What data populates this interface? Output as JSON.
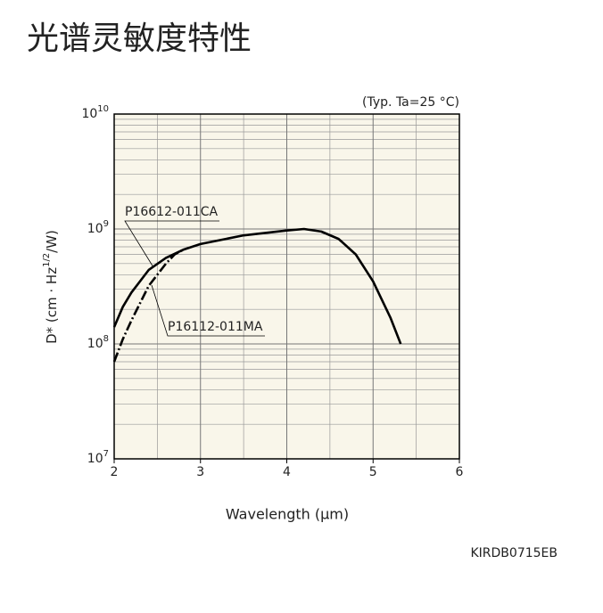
{
  "chart_data": {
    "type": "line",
    "title": "光谱灵敏度特性",
    "subtitle": "(Typ. Ta=25 °C)",
    "x_label": "Wavelength (μm)",
    "y_label": [
      "D* (cm · Hz",
      "1/2",
      "/W)"
    ],
    "footnote": "KIRDB0715EB",
    "log_y": true,
    "grid": true,
    "background": "#f9f6ea",
    "xlim": [
      2,
      6
    ],
    "xticks": [
      2,
      3,
      4,
      5,
      6
    ],
    "x_minor_grid": [
      2.5,
      3.5,
      4.5,
      5.5
    ],
    "ylim": [
      10000000,
      10000000000
    ],
    "yticks": [
      {
        "value": 10000000,
        "label": "10",
        "exponent": "7"
      },
      {
        "value": 100000000,
        "label": "10",
        "exponent": "8"
      },
      {
        "value": 1000000000,
        "label": "10",
        "exponent": "9"
      },
      {
        "value": 10000000000,
        "label": "10",
        "exponent": "10"
      }
    ],
    "y_minor_grid": [
      20000000,
      30000000,
      40000000,
      50000000,
      60000000,
      70000000,
      80000000,
      90000000,
      200000000,
      300000000,
      400000000,
      500000000,
      600000000,
      700000000,
      800000000,
      900000000,
      2000000000,
      3000000000,
      4000000000,
      5000000000,
      6000000000,
      7000000000,
      8000000000,
      9000000000
    ],
    "series": [
      {
        "name": "P16612-011CA",
        "color": "#000000",
        "dash": "solid",
        "x": [
          2.0,
          2.1,
          2.2,
          2.4,
          2.6,
          2.8,
          3.0,
          3.5,
          4.0,
          4.2,
          4.4,
          4.6,
          4.8,
          5.0,
          5.2,
          5.32
        ],
        "values": [
          140000000,
          210000000,
          280000000,
          440000000,
          560000000,
          660000000,
          740000000,
          880000000,
          970000000,
          1000000000,
          950000000,
          820000000,
          600000000,
          350000000,
          170000000,
          100000000
        ]
      },
      {
        "name": "P16112-011MA",
        "color": "#000000",
        "dash": "dashdot",
        "x": [
          2.0,
          2.1,
          2.2,
          2.4,
          2.6,
          2.7,
          2.8
        ],
        "values": [
          70000000,
          110000000,
          160000000,
          320000000,
          500000000,
          600000000,
          660000000
        ]
      }
    ]
  }
}
